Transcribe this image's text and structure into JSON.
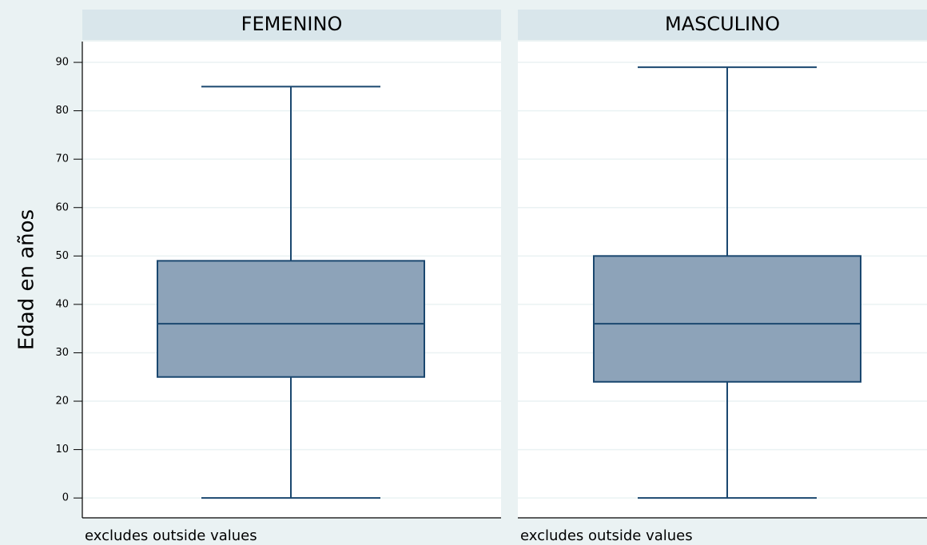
{
  "chart_data": {
    "type": "box",
    "ylabel": "Edad en años",
    "ylim": [
      -4.1,
      94.3
    ],
    "yticks": [
      0,
      10,
      20,
      30,
      40,
      50,
      60,
      70,
      80,
      90
    ],
    "grid": true,
    "color": "#8da3b9",
    "edge_color": "#1a476f",
    "panels": [
      {
        "title": "FEMENINO",
        "min": 0,
        "q1": 25,
        "median": 36,
        "q3": 49,
        "max": 85,
        "note": "excludes outside values"
      },
      {
        "title": "MASCULINO",
        "min": 0,
        "q1": 24,
        "median": 36,
        "q3": 50,
        "max": 89,
        "note": "excludes outside values"
      }
    ]
  }
}
